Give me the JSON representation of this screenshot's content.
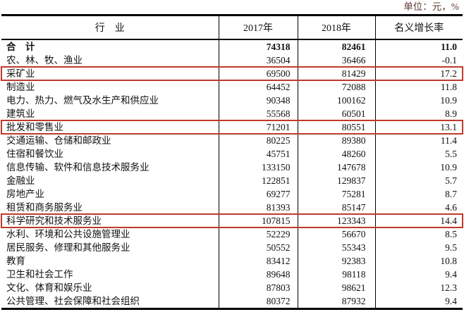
{
  "unit_note": "单位：元，%",
  "colors": {
    "highlight_box": "#c0392b",
    "table_border": "#000000",
    "unit_note_text": "#5f3c33",
    "text": "#111111"
  },
  "chart_data": {
    "type": "table",
    "unit_note": "单位：元，%",
    "columns": [
      "行　业",
      "2017年",
      "2018年",
      "名义增长率"
    ],
    "rows": [
      {
        "industry": "合　计",
        "y2017": 74318,
        "y2018": 82461,
        "growth": "11.0",
        "bold": true,
        "highlight": false
      },
      {
        "industry": "农、林、牧、渔业",
        "y2017": 36504,
        "y2018": 36466,
        "growth": "-0.1",
        "bold": false,
        "highlight": false
      },
      {
        "industry": "采矿业",
        "y2017": 69500,
        "y2018": 81429,
        "growth": "17.2",
        "bold": false,
        "highlight": true
      },
      {
        "industry": "制造业",
        "y2017": 64452,
        "y2018": 72088,
        "growth": "11.8",
        "bold": false,
        "highlight": false
      },
      {
        "industry": "电力、热力、燃气及水生产和供应业",
        "y2017": 90348,
        "y2018": 100162,
        "growth": "10.9",
        "bold": false,
        "highlight": false
      },
      {
        "industry": "建筑业",
        "y2017": 55568,
        "y2018": 60501,
        "growth": "8.9",
        "bold": false,
        "highlight": false
      },
      {
        "industry": "批发和零售业",
        "y2017": 71201,
        "y2018": 80551,
        "growth": "13.1",
        "bold": false,
        "highlight": true
      },
      {
        "industry": "交通运输、仓储和邮政业",
        "y2017": 80225,
        "y2018": 89380,
        "growth": "11.4",
        "bold": false,
        "highlight": false
      },
      {
        "industry": "住宿和餐饮业",
        "y2017": 45751,
        "y2018": 48260,
        "growth": "5.5",
        "bold": false,
        "highlight": false
      },
      {
        "industry": "信息传输、软件和信息技术服务业",
        "y2017": 133150,
        "y2018": 147678,
        "growth": "10.9",
        "bold": false,
        "highlight": false
      },
      {
        "industry": "金融业",
        "y2017": 122851,
        "y2018": 129837,
        "growth": "5.7",
        "bold": false,
        "highlight": false
      },
      {
        "industry": "房地产业",
        "y2017": 69277,
        "y2018": 75281,
        "growth": "8.7",
        "bold": false,
        "highlight": false
      },
      {
        "industry": "租赁和商务服务业",
        "y2017": 81393,
        "y2018": 85147,
        "growth": "4.6",
        "bold": false,
        "highlight": false
      },
      {
        "industry": "科学研究和技术服务业",
        "y2017": 107815,
        "y2018": 123343,
        "growth": "14.4",
        "bold": false,
        "highlight": true
      },
      {
        "industry": "水利、环境和公共设施管理业",
        "y2017": 52229,
        "y2018": 56670,
        "growth": "8.5",
        "bold": false,
        "highlight": false
      },
      {
        "industry": "居民服务、修理和其他服务业",
        "y2017": 50552,
        "y2018": 55343,
        "growth": "9.5",
        "bold": false,
        "highlight": false
      },
      {
        "industry": "教育",
        "y2017": 83412,
        "y2018": 92383,
        "growth": "10.8",
        "bold": false,
        "highlight": false
      },
      {
        "industry": "卫生和社会工作",
        "y2017": 89648,
        "y2018": 98118,
        "growth": "9.4",
        "bold": false,
        "highlight": false
      },
      {
        "industry": "文化、体育和娱乐业",
        "y2017": 87803,
        "y2018": 98621,
        "growth": "12.3",
        "bold": false,
        "highlight": false
      },
      {
        "industry": "公共管理、社会保障和社会组织",
        "y2017": 80372,
        "y2018": 87932,
        "growth": "9.4",
        "bold": false,
        "highlight": false
      }
    ],
    "highlighted_rows": [
      "采矿业",
      "批发和零售业",
      "科学研究和技术服务业"
    ]
  }
}
